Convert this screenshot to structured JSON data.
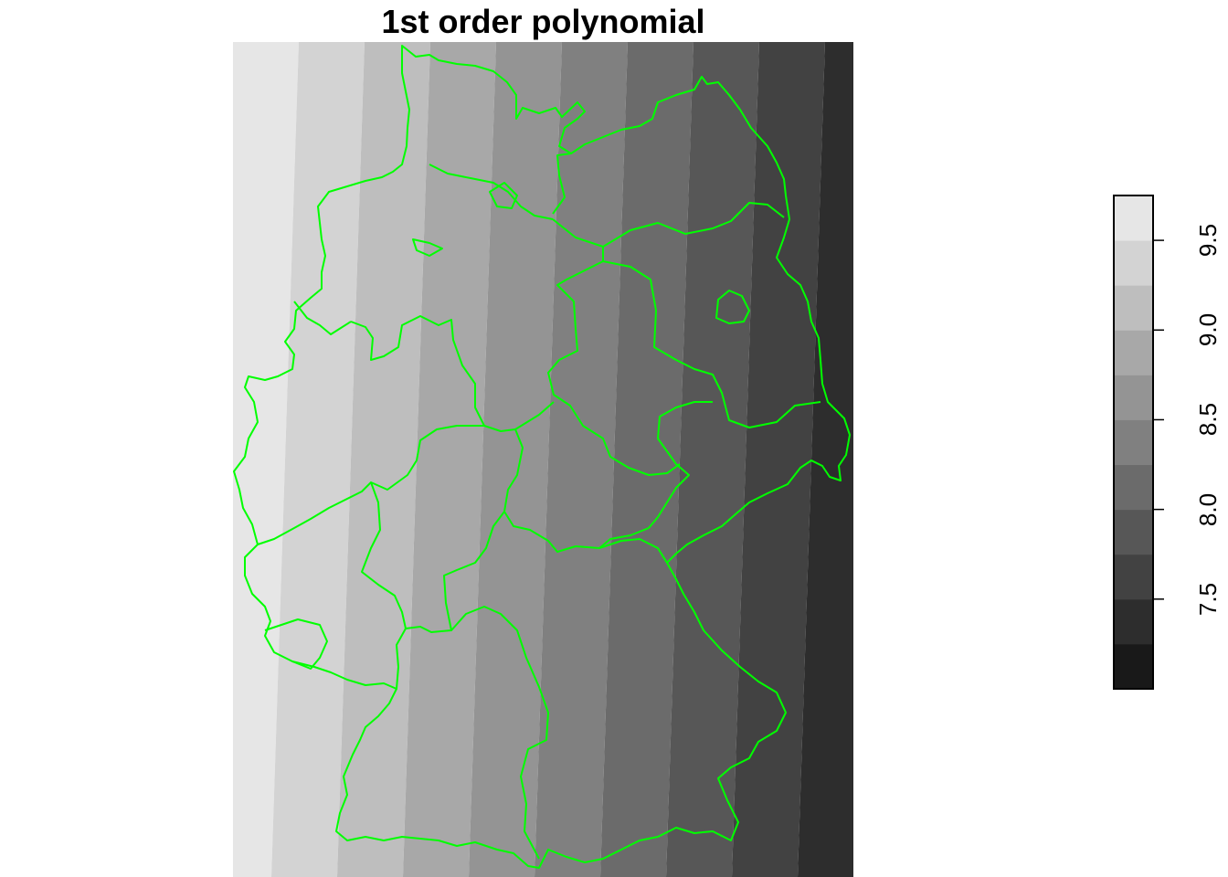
{
  "title": "1st order polynomial",
  "map": {
    "raster_colors": [
      "#e6e6e6",
      "#d3d3d3",
      "#bebebe",
      "#a8a8a8",
      "#949494",
      "#808080",
      "#6b6b6b",
      "#575757",
      "#424242",
      "#2d2d2d",
      "#191919"
    ],
    "border_color": "#00ff00",
    "regions": "German federal states (Länder) boundaries"
  },
  "legend": {
    "breaks": [
      7.0,
      7.25,
      7.5,
      7.75,
      8.0,
      8.25,
      8.5,
      8.75,
      9.0,
      9.25,
      9.5,
      9.75
    ],
    "ticks": [
      {
        "value": 7.5,
        "label": "7.5"
      },
      {
        "value": 8.0,
        "label": "8.0"
      },
      {
        "value": 8.5,
        "label": "8.5"
      },
      {
        "value": 9.0,
        "label": "9.0"
      },
      {
        "value": 9.5,
        "label": "9.5"
      }
    ],
    "colors": [
      "#191919",
      "#2d2d2d",
      "#424242",
      "#575757",
      "#6b6b6b",
      "#808080",
      "#949494",
      "#a8a8a8",
      "#bebebe",
      "#d3d3d3",
      "#e6e6e6"
    ]
  }
}
